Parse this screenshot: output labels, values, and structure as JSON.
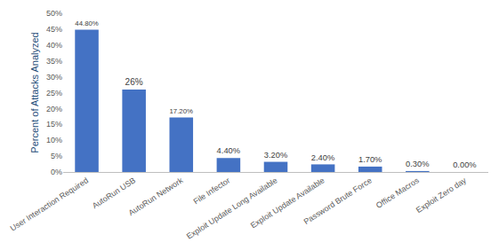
{
  "chart_data": {
    "type": "bar",
    "y_label": "Percent of Attacks Analyzed",
    "categories": [
      "User Interaction Required",
      "AutoRun USB",
      "AutoRun Network",
      "File Infector",
      "Exploit Update Long Available",
      "Exploit Update Available",
      "Password Brute Force",
      "Office Macros",
      "Exploit Zero day"
    ],
    "values": [
      44.8,
      26,
      17.2,
      4.4,
      3.2,
      2.4,
      1.7,
      0.3,
      0
    ],
    "value_labels": [
      "44.80%",
      "26%",
      "17.20%",
      "4.40%",
      "3.20%",
      "2.40%",
      "1.70%",
      "0.30%",
      "0.00%"
    ],
    "data_labels": true,
    "color": "#4472c4",
    "ylim": [
      0,
      50
    ],
    "yticks": [
      {
        "value": 0,
        "label": "0%"
      },
      {
        "value": 5,
        "label": "5%"
      },
      {
        "value": 10,
        "label": "10%"
      },
      {
        "value": 15,
        "label": "15%"
      },
      {
        "value": 20,
        "label": "20%"
      },
      {
        "value": 25,
        "label": "25%"
      },
      {
        "value": 30,
        "label": "30%"
      },
      {
        "value": 35,
        "label": "35%"
      },
      {
        "value": 40,
        "label": "40%"
      },
      {
        "value": 45,
        "label": "45%"
      },
      {
        "value": 50,
        "label": "50%"
      }
    ],
    "grid": false
  }
}
